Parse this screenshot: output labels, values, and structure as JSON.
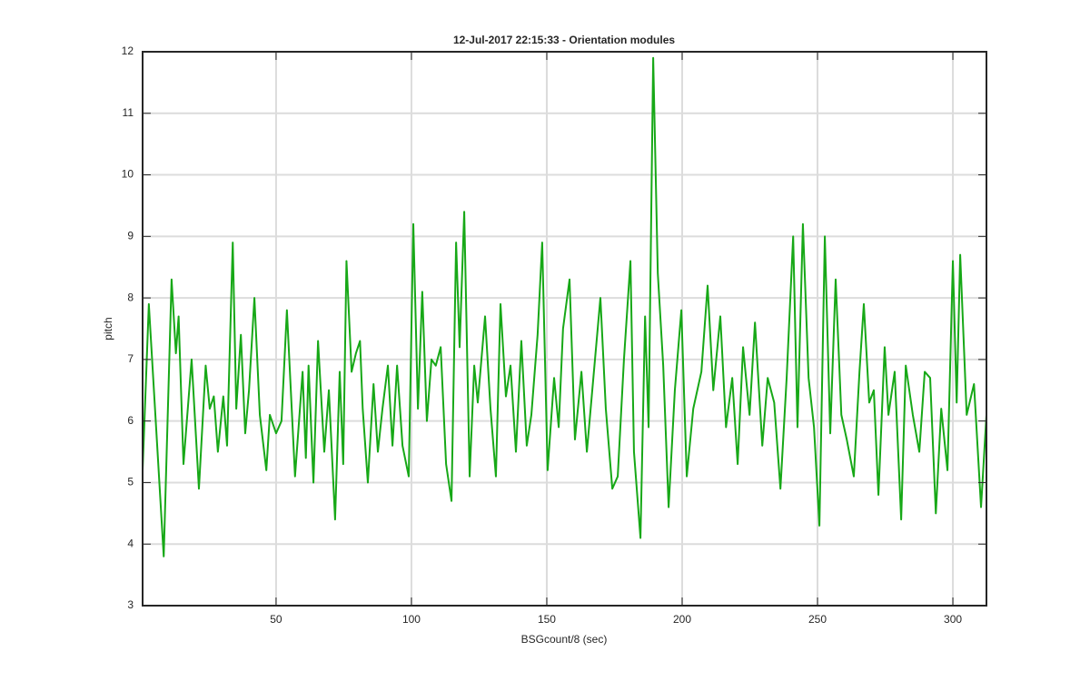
{
  "chart_data": {
    "type": "line",
    "title": "12-Jul-2017 22:15:33 - Orientation modules",
    "x_label": "BSGcount/8 (sec)",
    "y_label": "pitch",
    "x": [
      0.7,
      3,
      8.5,
      11.4,
      13,
      14,
      15.8,
      18.8,
      21.5,
      24,
      25.5,
      27,
      28.5,
      30.5,
      31.9,
      34,
      35.3,
      37,
      38.6,
      40,
      42,
      44,
      46.4,
      47.7,
      50,
      52,
      54,
      57,
      59.8,
      61,
      62,
      63.8,
      65.5,
      67.8,
      69.5,
      71.8,
      73.5,
      74.8,
      76,
      77.9,
      79.5,
      81,
      82,
      83.9,
      86,
      87.6,
      89.3,
      91.3,
      93,
      94.7,
      96.7,
      99,
      100.7,
      102.4,
      104,
      105.7,
      107.4,
      109,
      110.8,
      112.8,
      114.8,
      116.5,
      117.8,
      119.5,
      121.5,
      123.2,
      124.5,
      127.2,
      129.2,
      131.2,
      132.9,
      134.9,
      136.6,
      138.6,
      140.6,
      142.6,
      144.3,
      146.6,
      148.3,
      150.3,
      152.7,
      154.4,
      156,
      158.4,
      160.4,
      162.8,
      164.8,
      167.8,
      169.8,
      171.8,
      174.2,
      176.2,
      178.5,
      180.9,
      182.2,
      184.6,
      186.3,
      187.6,
      189.3,
      191,
      193,
      195,
      197.3,
      199.7,
      201.7,
      204.1,
      207.1,
      209.4,
      211.5,
      214.1,
      216.2,
      218.5,
      220.5,
      222.5,
      224.9,
      226.9,
      229.6,
      231.6,
      234,
      236.3,
      238.6,
      241,
      242.6,
      244.6,
      246.7,
      248.7,
      250.7,
      252.7,
      254.7,
      256.7,
      258.8,
      260.8,
      263.4,
      265.5,
      267.1,
      269.1,
      270.8,
      272.5,
      274.8,
      276.2,
      278.5,
      280.9,
      282.6,
      285.2,
      287.6,
      289.6,
      291.6,
      293.7,
      295.7,
      298,
      300,
      301.4,
      302.7,
      305.1,
      307.8,
      310.4,
      312.4
    ],
    "values": [
      5.2,
      7.9,
      3.8,
      8.3,
      7.1,
      7.7,
      5.3,
      7.0,
      4.9,
      6.9,
      6.2,
      6.4,
      5.5,
      6.4,
      5.6,
      8.9,
      6.2,
      7.4,
      5.8,
      6.5,
      8.0,
      6.1,
      5.2,
      6.1,
      5.8,
      6.0,
      7.8,
      5.1,
      6.8,
      5.4,
      6.9,
      5.0,
      7.3,
      5.5,
      6.5,
      4.4,
      6.8,
      5.3,
      8.6,
      6.8,
      7.1,
      7.3,
      6.2,
      5.0,
      6.6,
      5.5,
      6.2,
      6.9,
      5.6,
      6.9,
      5.6,
      5.1,
      9.2,
      6.2,
      8.1,
      6.0,
      7.0,
      6.9,
      7.2,
      5.3,
      4.7,
      8.9,
      7.2,
      9.4,
      5.1,
      6.9,
      6.3,
      7.7,
      6.2,
      5.1,
      7.9,
      6.4,
      6.9,
      5.5,
      7.3,
      5.6,
      6.1,
      7.4,
      8.9,
      5.2,
      6.7,
      5.9,
      7.5,
      8.3,
      5.7,
      6.8,
      5.5,
      7.0,
      8.0,
      6.2,
      4.9,
      5.1,
      7.0,
      8.6,
      5.5,
      4.1,
      7.7,
      5.9,
      11.9,
      8.4,
      6.9,
      4.6,
      6.5,
      7.8,
      5.1,
      6.2,
      6.8,
      8.2,
      6.5,
      7.7,
      5.9,
      6.7,
      5.3,
      7.2,
      6.1,
      7.6,
      5.6,
      6.7,
      6.3,
      4.9,
      6.7,
      9.0,
      5.9,
      9.2,
      6.7,
      5.9,
      4.3,
      9.0,
      5.8,
      8.3,
      6.1,
      5.7,
      5.1,
      6.8,
      7.9,
      6.3,
      6.5,
      4.8,
      7.2,
      6.1,
      6.8,
      4.4,
      6.9,
      6.1,
      5.5,
      6.8,
      6.7,
      4.5,
      6.2,
      5.2,
      8.6,
      6.3,
      8.7,
      6.1,
      6.6,
      4.6,
      6.1
    ],
    "color": "#17a817",
    "xlim": [
      0.7,
      312.4
    ],
    "xticks": [
      50,
      100,
      150,
      200,
      250,
      300
    ],
    "ylim": [
      3,
      12
    ],
    "yticks": [
      3,
      4,
      5,
      6,
      7,
      8,
      9,
      10,
      11,
      12
    ],
    "grid": true
  }
}
